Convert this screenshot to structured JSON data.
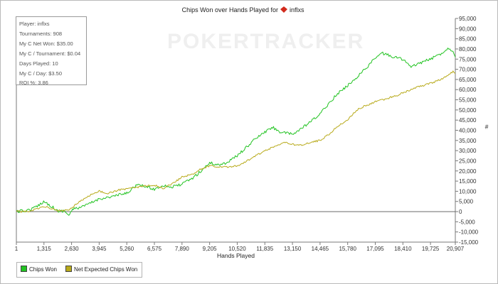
{
  "chart_data": {
    "type": "line",
    "title": "Chips Won over Hands Played for",
    "title_player": "inflxs",
    "xlabel": "Hands Played",
    "ylabel": "#",
    "xlim": [
      1,
      20907
    ],
    "ylim": [
      -15000,
      95000
    ],
    "x_ticks": [
      "1",
      "1,315",
      "2,630",
      "3,945",
      "5,260",
      "6,575",
      "7,890",
      "9,205",
      "10,520",
      "11,835",
      "13,150",
      "14,465",
      "15,780",
      "17,095",
      "18,410",
      "19,725",
      "20,907"
    ],
    "y_ticks": [
      "95,000",
      "90,000",
      "85,000",
      "80,000",
      "75,000",
      "70,000",
      "65,000",
      "60,000",
      "55,000",
      "50,000",
      "45,000",
      "40,000",
      "35,000",
      "30,000",
      "25,000",
      "20,000",
      "15,000",
      "10,000",
      "5,000",
      "0",
      "-5,000",
      "-10,000",
      "-15,000"
    ],
    "series": [
      {
        "name": "Chips Won",
        "color": "#22c322",
        "x": [
          1,
          500,
          900,
          1300,
          1700,
          2000,
          2300,
          2500,
          2630,
          2800,
          3200,
          3600,
          4000,
          4400,
          4800,
          5260,
          5700,
          6100,
          6575,
          7000,
          7400,
          7890,
          8400,
          8800,
          9205,
          9600,
          10000,
          10520,
          11000,
          11400,
          11835,
          12200,
          12600,
          13150,
          13600,
          14000,
          14465,
          14900,
          15300,
          15780,
          16200,
          16600,
          17095,
          17400,
          17700,
          18000,
          18410,
          18800,
          19200,
          19725,
          20100,
          20400,
          20600,
          20800,
          20907
        ],
        "values": [
          0,
          500,
          2000,
          5000,
          2500,
          0,
          500,
          -2000,
          500,
          1500,
          2500,
          4500,
          6500,
          7000,
          8000,
          9000,
          13000,
          12500,
          11000,
          13000,
          12000,
          13500,
          16500,
          20000,
          24000,
          23000,
          24000,
          27500,
          32000,
          36000,
          39000,
          41500,
          39000,
          38000,
          41000,
          44000,
          48000,
          53500,
          58000,
          62000,
          66000,
          70000,
          75500,
          78000,
          77000,
          76000,
          75000,
          71000,
          73000,
          75000,
          77000,
          79000,
          80500,
          79000,
          76000
        ]
      },
      {
        "name": "Net Expected Chips Won",
        "color": "#b8aa1a",
        "x": [
          1,
          500,
          900,
          1300,
          1700,
          2000,
          2300,
          2630,
          3000,
          3500,
          3945,
          4400,
          4800,
          5260,
          5700,
          6100,
          6575,
          7000,
          7400,
          7890,
          8400,
          8800,
          9205,
          9700,
          10200,
          10520,
          11000,
          11500,
          11835,
          12300,
          12800,
          13150,
          13600,
          14000,
          14465,
          14900,
          15300,
          15780,
          16200,
          16600,
          17095,
          17600,
          18100,
          18410,
          18800,
          19200,
          19725,
          20100,
          20500,
          20800,
          20907
        ],
        "values": [
          0,
          0,
          1000,
          2500,
          1500,
          500,
          500,
          1500,
          5000,
          8000,
          10000,
          9000,
          10500,
          11000,
          12000,
          12500,
          13000,
          11500,
          13500,
          17000,
          18500,
          21000,
          22500,
          22000,
          22000,
          22500,
          25000,
          28000,
          30000,
          32000,
          34000,
          33000,
          32500,
          34000,
          35000,
          38000,
          42000,
          45000,
          50000,
          52000,
          54000,
          55500,
          57000,
          58500,
          60000,
          61500,
          63000,
          64500,
          66500,
          69000,
          68000
        ]
      }
    ],
    "legend_position": "bottom-left",
    "grid": false
  },
  "header": {
    "watermark": "POKERTRACKER"
  },
  "stats": {
    "player": "Player: inflxs",
    "tournaments": "Tournaments: 908",
    "net_won": "My C Net Won: $35.00",
    "per_tournament": "My C / Tournament: $0.04",
    "days_played": "Days Played: 10",
    "per_day": "My C / Day: $3.50",
    "roi": "ROI %: 3.86"
  },
  "legend": {
    "items": [
      {
        "label": "Chips Won",
        "color": "#22c322"
      },
      {
        "label": "Net Expected Chips Won",
        "color": "#b8aa1a"
      }
    ]
  }
}
